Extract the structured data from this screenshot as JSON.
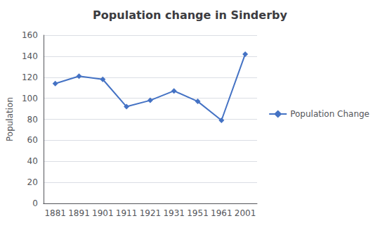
{
  "chart_data": {
    "type": "line",
    "title": "Population change in Sinderby",
    "ylabel": "Population",
    "categories": [
      "1881",
      "1891",
      "1901",
      "1911",
      "1921",
      "1931",
      "1951",
      "1961",
      "2001"
    ],
    "series": [
      {
        "name": "Population Change",
        "color": "#4472C4",
        "marker": "diamond",
        "values": [
          114,
          121,
          118,
          92,
          98,
          107,
          97,
          79,
          142
        ]
      }
    ],
    "ylim": [
      0,
      160
    ],
    "yticks": [
      0,
      20,
      40,
      60,
      80,
      100,
      120,
      140,
      160
    ],
    "grid": true,
    "legend": "right"
  }
}
